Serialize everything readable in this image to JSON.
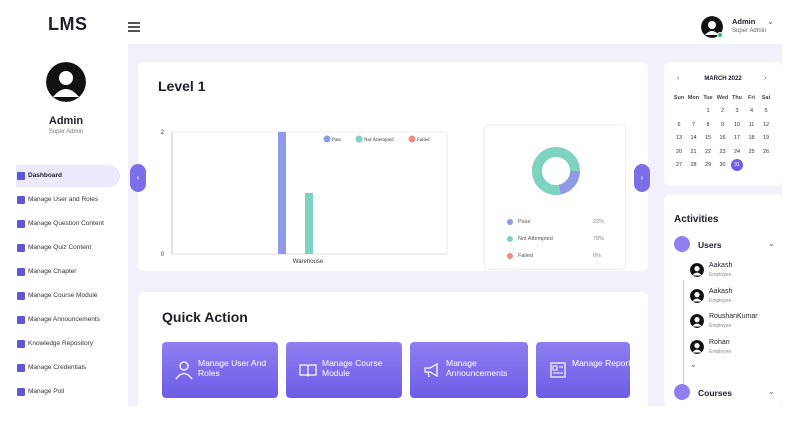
{
  "app": {
    "logo": "LMS"
  },
  "topbar": {
    "user_name": "Admin",
    "user_role": "Super Admin"
  },
  "sidebar": {
    "name": "Admin",
    "role": "Super Admin",
    "items": [
      {
        "label": "Dashboard",
        "active": true
      },
      {
        "label": "Manage User and Roles"
      },
      {
        "label": "Manage Question Content"
      },
      {
        "label": "Manage Quiz Content"
      },
      {
        "label": "Manage Chapter"
      },
      {
        "label": "Manage Course Module"
      },
      {
        "label": "Manage Announcements"
      },
      {
        "label": "Knowledge Repository"
      },
      {
        "label": "Manage Credentials"
      },
      {
        "label": "Manage Poll"
      }
    ]
  },
  "level": {
    "title": "Level 1",
    "legend": [
      "Pass",
      "Not Attempted",
      "Failed"
    ],
    "donut_legend": [
      {
        "label": "Pass",
        "pct": "22%"
      },
      {
        "label": "Not Attempted",
        "pct": "78%"
      },
      {
        "label": "Failed",
        "pct": "0%"
      }
    ]
  },
  "chart_data": {
    "type": "bar",
    "categories": [
      "Warehouse"
    ],
    "series": [
      {
        "name": "Pass",
        "values": [
          2
        ]
      },
      {
        "name": "Not Attempted",
        "values": [
          1
        ]
      },
      {
        "name": "Failed",
        "values": [
          0
        ]
      }
    ],
    "ylim": [
      0,
      2
    ],
    "yticks": [
      "0",
      "2"
    ],
    "xlabel": "",
    "ylabel": "",
    "colors": [
      "#8f9ae8",
      "#7dd3c0",
      "#f08a80"
    ],
    "donut": {
      "type": "pie",
      "labels": [
        "Pass",
        "Not Attempted",
        "Failed"
      ],
      "values": [
        22,
        78,
        0
      ]
    }
  },
  "quick_action": {
    "title": "Quick Action",
    "buttons": [
      {
        "label": "Manage User And Roles"
      },
      {
        "label": "Manage Course Module"
      },
      {
        "label": "Manage Announcements"
      },
      {
        "label": "Manage Reports"
      }
    ]
  },
  "calendar": {
    "title": "MARCH 2022",
    "days": [
      "Sun",
      "Mon",
      "Tue",
      "Wed",
      "Thu",
      "Fri",
      "Sat"
    ],
    "first_weekday": 2,
    "num_days": 31,
    "selected": 31
  },
  "activities": {
    "title": "Activities",
    "users_label": "Users",
    "courses_label": "Courses",
    "users": [
      {
        "name": "Aakash",
        "role": "Employee"
      },
      {
        "name": "Aakash",
        "role": "Employee"
      },
      {
        "name": "RoushanKumar",
        "role": "Employee"
      },
      {
        "name": "Rohan",
        "role": "Employee"
      }
    ]
  },
  "theme": {
    "accent": "#6c5ce7",
    "bg": "#f2f0fb"
  }
}
